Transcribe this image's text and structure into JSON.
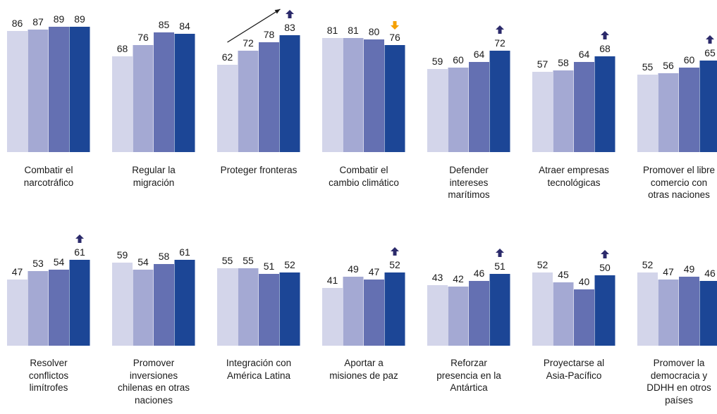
{
  "chart_data": {
    "type": "bar",
    "series": [
      {
        "color": "#d3d5ea"
      },
      {
        "color": "#a4a9d3"
      },
      {
        "color": "#6470b2"
      },
      {
        "color": "#1c4696"
      }
    ],
    "ylim": [
      0,
      100
    ],
    "colors": {
      "up_arrow": "#2b2a6b",
      "down_arrow": "#f5a000",
      "trend_arrow": "#1a1a1a"
    },
    "panels": [
      {
        "label": "Combatir el\nnarcotráfico",
        "values": [
          86,
          87,
          89,
          89
        ],
        "arrow": null,
        "trend_line": false
      },
      {
        "label": "Regular la\nmigración",
        "values": [
          68,
          76,
          85,
          84
        ],
        "arrow": null,
        "trend_line": false
      },
      {
        "label": "Proteger fronteras",
        "values": [
          62,
          72,
          78,
          83
        ],
        "arrow": "up",
        "trend_line": true
      },
      {
        "label": "Combatir el\ncambio climático",
        "values": [
          81,
          81,
          80,
          76
        ],
        "arrow": "down",
        "trend_line": false
      },
      {
        "label": "Defender\nintereses\nmarítimos",
        "values": [
          59,
          60,
          64,
          72
        ],
        "arrow": "up",
        "trend_line": false
      },
      {
        "label": "Atraer empresas\ntecnológicas",
        "values": [
          57,
          58,
          64,
          68
        ],
        "arrow": "up",
        "trend_line": false
      },
      {
        "label": "Promover el libre\ncomercio con\notras naciones",
        "values": [
          55,
          56,
          60,
          65
        ],
        "arrow": "up",
        "trend_line": false
      },
      {
        "label": "Resolver\nconflictos\nlimítrofes",
        "values": [
          47,
          53,
          54,
          61
        ],
        "arrow": "up",
        "trend_line": false
      },
      {
        "label": "Promover\ninversiones\nchilenas en otras\nnaciones",
        "values": [
          59,
          54,
          58,
          61
        ],
        "arrow": null,
        "trend_line": false
      },
      {
        "label": "Integración con\nAmérica Latina",
        "values": [
          55,
          55,
          51,
          52
        ],
        "arrow": null,
        "trend_line": false
      },
      {
        "label": "Aportar a\nmisiones de paz",
        "values": [
          41,
          49,
          47,
          52
        ],
        "arrow": "up",
        "trend_line": false
      },
      {
        "label": "Reforzar\npresencia en la\nAntártica",
        "values": [
          43,
          42,
          46,
          51
        ],
        "arrow": "up",
        "trend_line": false
      },
      {
        "label": "Proyectarse al\nAsia-Pacífico",
        "values": [
          52,
          45,
          40,
          50
        ],
        "arrow": "up",
        "trend_line": false
      },
      {
        "label": "Promover la\ndemocracia y\nDDHH en otros\npaíses",
        "values": [
          52,
          47,
          49,
          46
        ],
        "arrow": null,
        "trend_line": false
      }
    ]
  }
}
